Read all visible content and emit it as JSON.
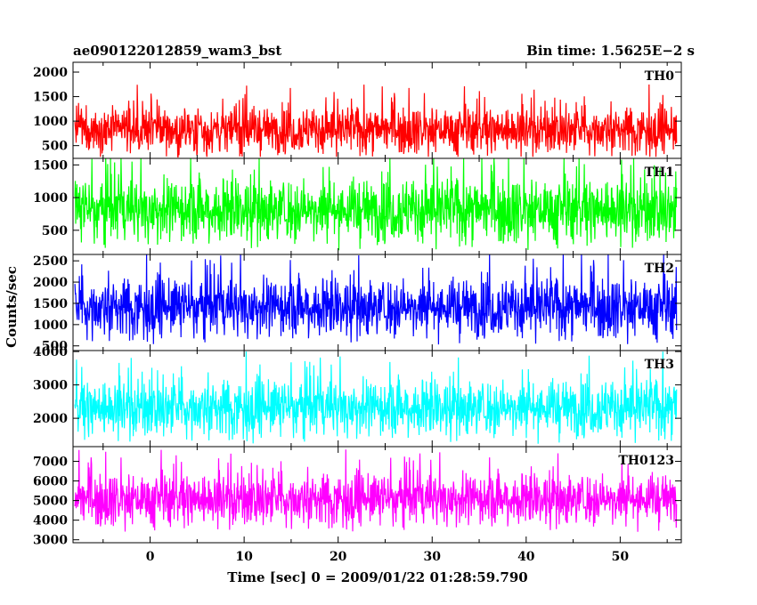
{
  "header": {
    "left": "ae090122012859_wam3_bst",
    "right": "Bin time: 1.5625E−2 s"
  },
  "chart_data": {
    "type": "line",
    "title": "ae090122012859_wam3_bst",
    "xlabel": "Time [sec] 0 = 2009/01/22 01:28:59.790",
    "ylabel": "Counts/sec",
    "xlim": [
      -8.2,
      56.5
    ],
    "x_range": [
      -8.0,
      56.0
    ],
    "x_ticks": [
      0,
      10,
      20,
      30,
      40,
      50
    ],
    "x_tick_labels": [
      "0",
      "10",
      "20",
      "30",
      "40",
      "50"
    ],
    "bin_time": 0.015625,
    "grid": false,
    "legend": "none",
    "panels": [
      {
        "name": "TH0",
        "color": "#ff0000",
        "ylim": [
          240,
          2200
        ],
        "y_ticks": [
          500,
          1000,
          1500,
          2000
        ],
        "y_tick_labels": [
          "500",
          "1000",
          "1500",
          "2000"
        ],
        "mean": 830,
        "sigma": 230,
        "min": 270,
        "max": 2200
      },
      {
        "name": "TH1",
        "color": "#00ff00",
        "ylim": [
          130,
          1600
        ],
        "y_ticks": [
          500,
          1000,
          1500
        ],
        "y_tick_labels": [
          "500",
          "1000",
          "1500"
        ],
        "mean": 820,
        "sigma": 240,
        "min": 180,
        "max": 1600
      },
      {
        "name": "TH2",
        "color": "#0000ff",
        "ylim": [
          390,
          2650
        ],
        "y_ticks": [
          500,
          1000,
          1500,
          2000,
          2500
        ],
        "y_tick_labels": [
          "500",
          "1000",
          "1500",
          "2000",
          "2500"
        ],
        "mean": 1420,
        "sigma": 340,
        "min": 430,
        "max": 2650
      },
      {
        "name": "TH3",
        "color": "#00ffff",
        "ylim": [
          1150,
          4030
        ],
        "y_ticks": [
          2000,
          3000,
          4000
        ],
        "y_tick_labels": [
          "2000",
          "3000",
          "4000"
        ],
        "mean": 2330,
        "sigma": 420,
        "min": 1230,
        "max": 4000
      },
      {
        "name": "TH0123",
        "color": "#ff00ff",
        "ylim": [
          2850,
          7750
        ],
        "y_ticks": [
          3000,
          4000,
          5000,
          6000,
          7000
        ],
        "y_tick_labels": [
          "3000",
          "4000",
          "5000",
          "6000",
          "7000"
        ],
        "mean": 5100,
        "sigma": 650,
        "min": 3050,
        "max": 7600
      }
    ]
  }
}
